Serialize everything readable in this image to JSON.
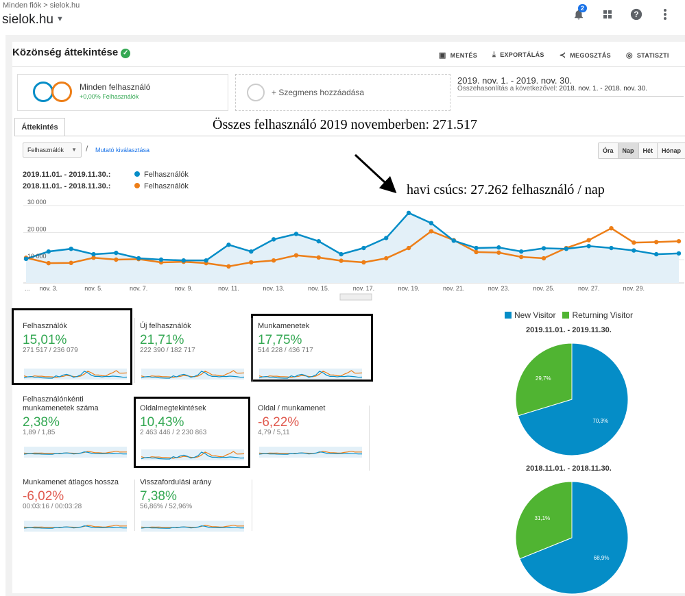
{
  "top": {
    "breadcrumb": "Minden fiók > sielok.hu",
    "account": "sielok.hu",
    "notif_count": "2",
    "icons": [
      "bell-icon",
      "apps-grid-icon",
      "help-icon",
      "more-vert-icon"
    ]
  },
  "header": {
    "title": "Közönség áttekintése",
    "actions": [
      "MENTÉS",
      "EXPORTÁLÁS",
      "MEGOSZTÁS",
      "STATISZTI"
    ]
  },
  "segments": {
    "all_users": "Minden felhasználó",
    "all_users_sub": "+0,00% Felhasználók",
    "add_segment": "+ Szegmens hozzáadása"
  },
  "dates": {
    "range": "2019. nov. 1. - 2019. nov. 30.",
    "compare_label": "Összehasonlítás a következővel:",
    "compare_range": "2018. nov. 1. - 2018. nov. 30."
  },
  "tab": "Áttekintés",
  "annotations": {
    "total": "Összes felhasználó 2019 novemberben: 271.517",
    "peak": "havi csúcs: 27.262 felhasználó / nap"
  },
  "controls": {
    "metric": "Felhasználók",
    "pick_metric": "Mutató kiválasztása",
    "granularity": [
      "Óra",
      "Nap",
      "Hét",
      "Hónap"
    ],
    "active_granularity": "Nap"
  },
  "legend": [
    {
      "period": "2019.11.01. - 2019.11.30.:",
      "label": "Felhasználók",
      "color": "#058dc7"
    },
    {
      "period": "2018.11.01. - 2018.11.30.:",
      "label": "Felhasználók",
      "color": "#ed7e17"
    }
  ],
  "chart_data": {
    "type": "line",
    "ylim": [
      0,
      30000
    ],
    "yticks": [
      "30 000",
      "20 000",
      "10 000"
    ],
    "xticks": [
      "...",
      "nov. 3.",
      "nov. 5.",
      "nov. 7.",
      "nov. 9.",
      "nov. 11.",
      "nov. 13.",
      "nov. 15.",
      "nov. 17.",
      "nov. 19.",
      "nov. 21.",
      "nov. 23.",
      "nov. 25.",
      "nov. 27.",
      "nov. 29."
    ],
    "series": [
      {
        "name": "2019.11.01. - 2019.11.30.",
        "color": "#058dc7",
        "values": [
          10300,
          13000,
          14000,
          12000,
          12500,
          10500,
          10000,
          9700,
          9700,
          15500,
          13000,
          17500,
          19500,
          16800,
          12000,
          14300,
          18000,
          27262,
          23500,
          17000,
          14300,
          14500,
          13000,
          14200,
          14000,
          15000,
          14300,
          13400,
          12000,
          12300
        ]
      },
      {
        "name": "2018.11.01. - 2018.11.30.",
        "color": "#ed7e17",
        "values": [
          10700,
          8700,
          8800,
          10700,
          10000,
          10200,
          9000,
          9200,
          8700,
          7500,
          9000,
          9700,
          11600,
          10800,
          9600,
          9000,
          10500,
          14300,
          20500,
          17200,
          12800,
          12600,
          11000,
          10500,
          14300,
          17200,
          21600,
          16300,
          16500,
          16800
        ]
      }
    ]
  },
  "tiles": [
    {
      "title": "Felhasználók",
      "pct": "15,01%",
      "vals": "271 517 / 236 079",
      "sign": "pos"
    },
    {
      "title": "Új felhasználók",
      "pct": "21,71%",
      "vals": "222 390 / 182 717",
      "sign": "pos"
    },
    {
      "title": "Munkamenetek",
      "pct": "17,75%",
      "vals": "514 228 / 436 717",
      "sign": "pos"
    },
    {
      "title": "Felhasználónkénti munkamenetek száma",
      "pct": "2,38%",
      "vals": "1,89 / 1,85",
      "sign": "pos"
    },
    {
      "title": "Oldalmegtekintések",
      "pct": "10,43%",
      "vals": "2 463 446 / 2 230 863",
      "sign": "pos"
    },
    {
      "title": "Oldal / munkamenet",
      "pct": "-6,22%",
      "vals": "4,79 / 5,11",
      "sign": "neg"
    },
    {
      "title": "Munkamenet átlagos hossza",
      "pct": "-6,02%",
      "vals": "00:03:16 / 00:03:28",
      "sign": "neg"
    },
    {
      "title": "Visszafordulási arány",
      "pct": "7,38%",
      "vals": "56,86% / 52,96%",
      "sign": "pos"
    }
  ],
  "pies": {
    "legend": [
      {
        "label": "New Visitor",
        "color": "#058dc7"
      },
      {
        "label": "Returning Visitor",
        "color": "#50b432"
      }
    ],
    "charts": [
      {
        "title": "2019.11.01. - 2019.11.30.",
        "new_pct": 70.3,
        "returning_pct": 29.7,
        "new_label": "70,3%",
        "returning_label": "29,7%"
      },
      {
        "title": "2018.11.01. - 2018.11.30.",
        "new_pct": 68.9,
        "returning_pct": 31.1,
        "new_label": "68,9%",
        "returning_label": "31,1%"
      }
    ]
  }
}
